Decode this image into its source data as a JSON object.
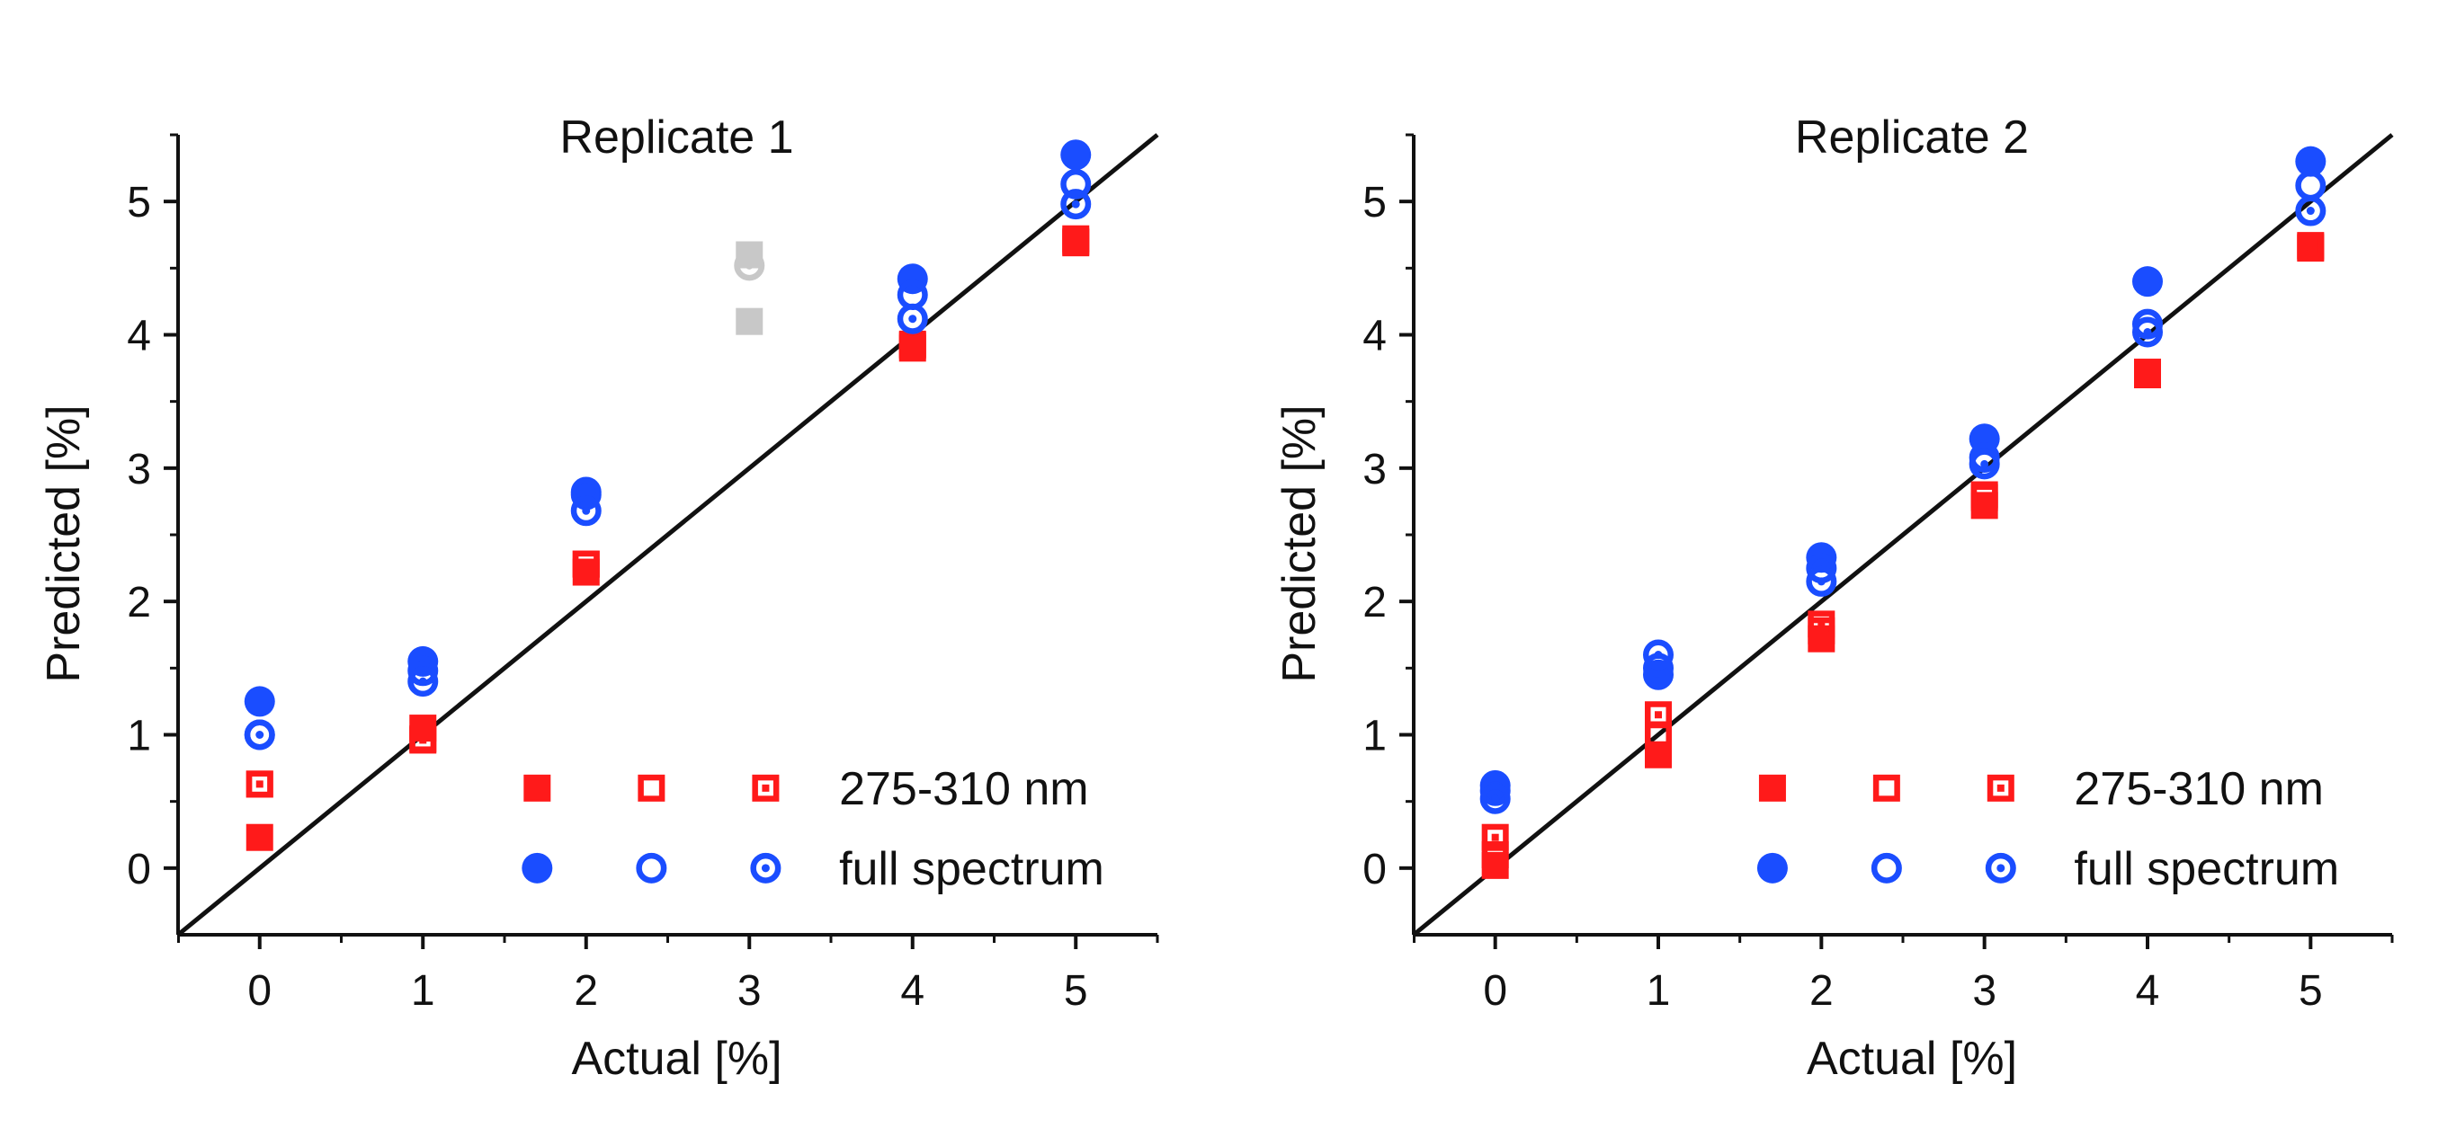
{
  "chart_data": [
    {
      "type": "scatter",
      "title": "Replicate 1",
      "xlabel": "Actual [%]",
      "ylabel": "Predicted [%]",
      "xlim": [
        -0.5,
        5.5
      ],
      "ylim": [
        -0.5,
        5.5
      ],
      "xticks": [
        "0",
        "1",
        "2",
        "3",
        "4",
        "5"
      ],
      "yticks": [
        "0",
        "1",
        "2",
        "3",
        "4",
        "5"
      ],
      "grid": false,
      "legend_position": "bottom-right",
      "reference_line": {
        "name": "y = x",
        "x": [
          -0.5,
          5.5
        ],
        "y": [
          -0.5,
          5.5
        ]
      },
      "series": [
        {
          "name": "275-310 nm",
          "marker": "square-filled",
          "color": "#ff1a1a",
          "x": [
            0,
            1,
            2,
            4,
            5
          ],
          "y": [
            0.23,
            1.05,
            2.22,
            3.93,
            4.72
          ]
        },
        {
          "name": "275-310 nm",
          "marker": "square-open",
          "color": "#ff1a1a",
          "x": [
            0,
            1,
            2,
            4,
            5
          ],
          "y": [
            0.63,
            0.97,
            2.28,
            3.9,
            4.7
          ]
        },
        {
          "name": "275-310 nm",
          "marker": "square-dotted",
          "color": "#ff1a1a",
          "x": [
            0,
            1,
            2,
            4,
            5
          ],
          "y": [
            0.63,
            0.96,
            2.28,
            3.92,
            4.69
          ]
        },
        {
          "name": "full spectrum",
          "marker": "circle-filled",
          "color": "#1a4dff",
          "x": [
            0,
            1,
            2,
            4,
            5
          ],
          "y": [
            1.25,
            1.55,
            2.8,
            4.42,
            5.35
          ]
        },
        {
          "name": "full spectrum",
          "marker": "circle-open",
          "color": "#1a4dff",
          "x": [
            0,
            1,
            2,
            4,
            5
          ],
          "y": [
            1.0,
            1.48,
            2.82,
            4.3,
            5.13
          ]
        },
        {
          "name": "full spectrum",
          "marker": "circle-dotted",
          "color": "#1a4dff",
          "x": [
            0,
            1,
            2,
            4,
            5
          ],
          "y": [
            1.0,
            1.4,
            2.68,
            4.12,
            4.98
          ]
        }
      ],
      "excluded_points": {
        "color": "#c8c8c8",
        "points": [
          {
            "x": 3,
            "y": 4.1,
            "marker": "square-filled"
          },
          {
            "x": 3,
            "y": 4.6,
            "marker": "square-filled"
          },
          {
            "x": 3,
            "y": 4.52,
            "marker": "circle-dotted"
          }
        ]
      },
      "legend": {
        "rows": [
          {
            "label": "275-310 nm",
            "color": "#ff1a1a",
            "markers": [
              "square-filled",
              "square-open",
              "square-dotted"
            ]
          },
          {
            "label": "full spectrum",
            "color": "#1a4dff",
            "markers": [
              "circle-filled",
              "circle-open",
              "circle-dotted"
            ]
          }
        ]
      }
    },
    {
      "type": "scatter",
      "title": "Replicate 2",
      "xlabel": "Actual [%]",
      "ylabel": "Predicted [%]",
      "xlim": [
        -0.5,
        5.5
      ],
      "ylim": [
        -0.5,
        5.5
      ],
      "xticks": [
        "0",
        "1",
        "2",
        "3",
        "4",
        "5"
      ],
      "yticks": [
        "0",
        "1",
        "2",
        "3",
        "4",
        "5"
      ],
      "grid": false,
      "legend_position": "bottom-right",
      "reference_line": {
        "name": "y = x",
        "x": [
          -0.5,
          5.5
        ],
        "y": [
          -0.5,
          5.5
        ]
      },
      "series": [
        {
          "name": "275-310 nm",
          "marker": "square-filled",
          "color": "#ff1a1a",
          "x": [
            0,
            1,
            2,
            3,
            4,
            5
          ],
          "y": [
            0.02,
            0.85,
            1.72,
            2.72,
            3.7,
            4.65
          ]
        },
        {
          "name": "275-310 nm",
          "marker": "square-open",
          "color": "#ff1a1a",
          "x": [
            0,
            1,
            2,
            3,
            4,
            5
          ],
          "y": [
            0.1,
            1.0,
            1.78,
            2.8,
            3.72,
            4.67
          ]
        },
        {
          "name": "275-310 nm",
          "marker": "square-dotted",
          "color": "#ff1a1a",
          "x": [
            0,
            1,
            2,
            3,
            4,
            5
          ],
          "y": [
            0.23,
            1.15,
            1.83,
            2.78,
            3.7,
            4.66
          ]
        },
        {
          "name": "full spectrum",
          "marker": "circle-filled",
          "color": "#1a4dff",
          "x": [
            0,
            1,
            2,
            3,
            4,
            5
          ],
          "y": [
            0.62,
            1.45,
            2.33,
            3.22,
            4.4,
            5.3
          ]
        },
        {
          "name": "full spectrum",
          "marker": "circle-open",
          "color": "#1a4dff",
          "x": [
            0,
            1,
            2,
            3,
            4,
            5
          ],
          "y": [
            0.58,
            1.5,
            2.25,
            3.08,
            4.08,
            5.12
          ]
        },
        {
          "name": "full spectrum",
          "marker": "circle-dotted",
          "color": "#1a4dff",
          "x": [
            0,
            1,
            2,
            3,
            4,
            5
          ],
          "y": [
            0.52,
            1.6,
            2.15,
            3.03,
            4.02,
            4.93
          ]
        }
      ],
      "legend": {
        "rows": [
          {
            "label": "275-310 nm",
            "color": "#ff1a1a",
            "markers": [
              "square-filled",
              "square-open",
              "square-dotted"
            ]
          },
          {
            "label": "full spectrum",
            "color": "#1a4dff",
            "markers": [
              "circle-filled",
              "circle-open",
              "circle-dotted"
            ]
          }
        ]
      }
    }
  ]
}
